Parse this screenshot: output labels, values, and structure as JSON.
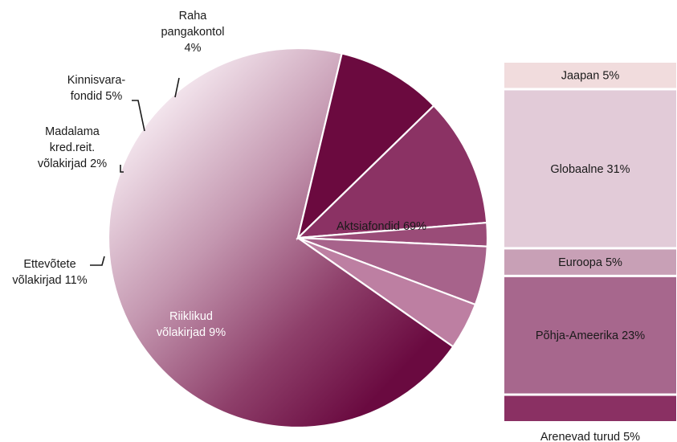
{
  "chart_data": [
    {
      "type": "pie",
      "slices": [
        {
          "label_lines": [
            "Aktsiafondid 69%"
          ],
          "value": 69,
          "color": "gradient"
        },
        {
          "label_lines": [
            "Riiklikud",
            "võlakirjad 9%"
          ],
          "value": 9,
          "color": "#6b0a3f"
        },
        {
          "label_lines": [
            "Ettevõtete",
            "võlakirjad 11%"
          ],
          "value": 11,
          "color": "#8b3264"
        },
        {
          "label_lines": [
            "Madalama",
            "kred.reit.",
            "võlakirjad 2%"
          ],
          "value": 2,
          "color": "#9a4c78"
        },
        {
          "label_lines": [
            "Kinnisvara-",
            "fondid 5%"
          ],
          "value": 5,
          "color": "#a7638b"
        },
        {
          "label_lines": [
            "Raha",
            "pangakontol",
            "4%"
          ],
          "value": 4,
          "color": "#bd7fa2"
        }
      ]
    },
    {
      "type": "bar",
      "stacked": true,
      "segments": [
        {
          "label": "Jaapan 5%",
          "value": 5,
          "color": "#f1dcdd"
        },
        {
          "label": "Globaalne 31%",
          "value": 31,
          "color": "#e2cbd8"
        },
        {
          "label": "Euroopa 5%",
          "value": 5,
          "color": "#c8a0b6"
        },
        {
          "label": "Põhja-Ameerika 23%",
          "value": 23,
          "color": "#a7678d"
        },
        {
          "label": "Arenevad turud 5%",
          "value": 5,
          "color": "#8a3063"
        }
      ]
    }
  ],
  "gradient_colors": [
    "#f6eaf1",
    "#c497b0",
    "#8e3f6a",
    "#6a0a40"
  ]
}
